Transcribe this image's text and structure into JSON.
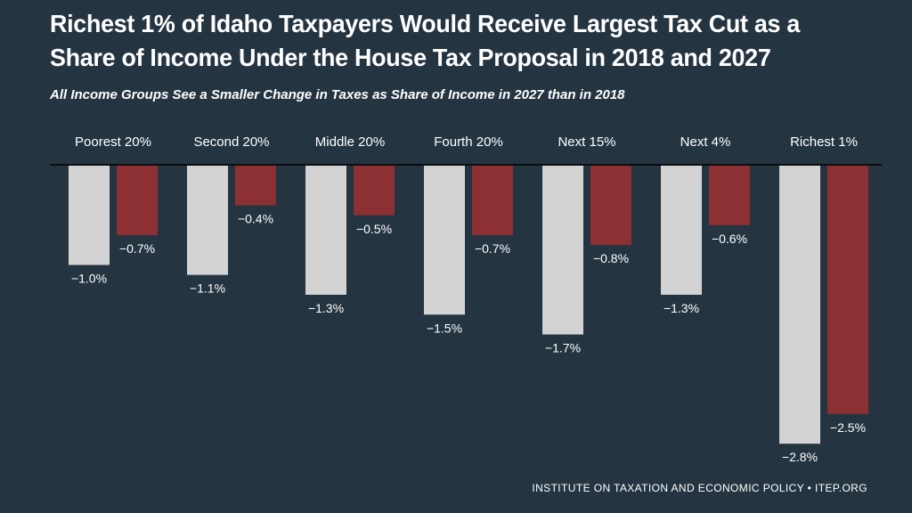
{
  "chart_data": {
    "type": "bar",
    "title": "Richest 1% of Idaho Taxpayers Would Receive Largest Tax Cut as a Share of Income Under the House Tax Proposal in 2018 and 2027",
    "subtitle": "All  Income Groups See a Smaller Change in Taxes as Share of Income in 2027  than in 2018",
    "categories": [
      "Poorest 20%",
      "Second 20%",
      "Middle 20%",
      "Fourth 20%",
      "Next 15%",
      "Next 4%",
      "Richest 1%"
    ],
    "series": [
      {
        "values": [
          -1.0,
          -1.1,
          -1.3,
          -1.5,
          -1.7,
          -1.3,
          -2.8
        ],
        "labels": [
          "−1.0%",
          "−1.1%",
          "−1.3%",
          "−1.5%",
          "−1.7%",
          "−1.3%",
          "−2.8%"
        ],
        "color": "#d3d3d3"
      },
      {
        "values": [
          -0.7,
          -0.4,
          -0.5,
          -0.7,
          -0.8,
          -0.6,
          -2.5
        ],
        "labels": [
          "−0.7%",
          "−0.4%",
          "−0.5%",
          "−0.7%",
          "−0.8%",
          "−0.6%",
          "−2.5%"
        ],
        "color": "#8c3033"
      }
    ],
    "ylim": [
      -2.8,
      0
    ],
    "grid": false,
    "legend": "none",
    "colors": {
      "background": "#243541",
      "axis": "#000000",
      "text": "#ffffff"
    }
  },
  "source": "INSTITUTE ON TAXATION AND ECONOMIC POLICY • ITEP.ORG"
}
